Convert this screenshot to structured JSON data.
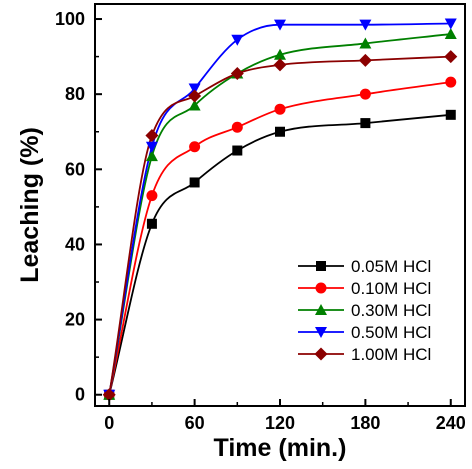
{
  "chart_data": {
    "type": "line",
    "xlabel": "Time (min.)",
    "ylabel": "Leaching (%)",
    "xlim": [
      -10,
      250
    ],
    "ylim": [
      -3,
      104
    ],
    "xticks": [
      0,
      60,
      120,
      180,
      240
    ],
    "yticks": [
      0,
      20,
      40,
      60,
      80,
      100
    ],
    "x": [
      0,
      30,
      60,
      90,
      120,
      180,
      240
    ],
    "legend_position": "bottom-right",
    "grid": false,
    "series": [
      {
        "name": "0.05M HCl",
        "color": "#000000",
        "marker": "square",
        "values": [
          0,
          45.5,
          56.5,
          65,
          70,
          72.3,
          74.5
        ]
      },
      {
        "name": "0.10M HCl",
        "color": "#ff0000",
        "marker": "circle",
        "values": [
          0,
          53,
          66,
          71.2,
          76,
          80,
          83.2
        ]
      },
      {
        "name": "0.30M HCl",
        "color": "#008000",
        "marker": "triangle-up",
        "values": [
          0,
          63.5,
          77,
          85.5,
          90.5,
          93.5,
          96
        ]
      },
      {
        "name": "0.50M HCl",
        "color": "#0000ff",
        "marker": "triangle-down",
        "values": [
          0,
          66,
          81.5,
          94.5,
          98.5,
          98.5,
          98.8
        ]
      },
      {
        "name": "1.00M HCl",
        "color": "#8b0000",
        "marker": "diamond",
        "values": [
          0,
          69,
          79.5,
          85.5,
          87.8,
          89,
          90
        ]
      }
    ]
  }
}
